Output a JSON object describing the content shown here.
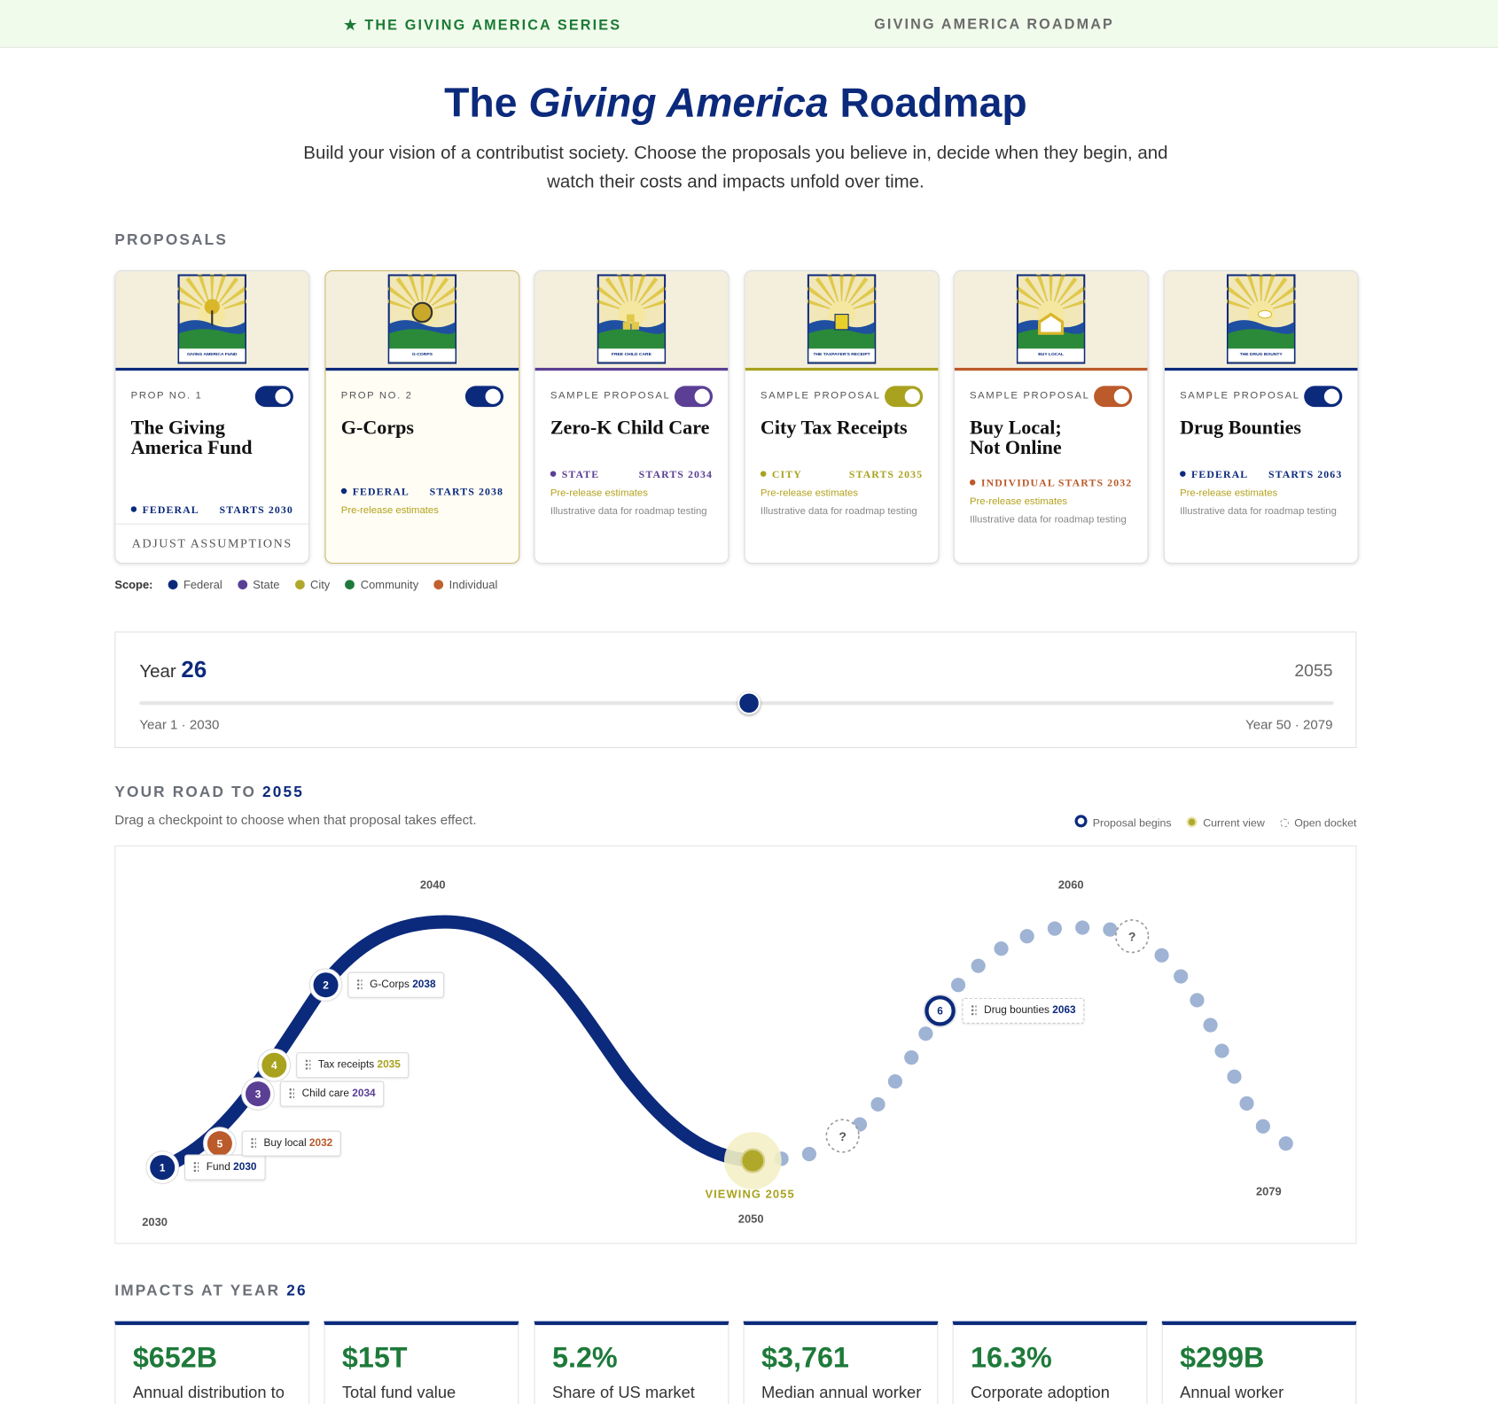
{
  "nav": {
    "series": "THE GIVING AMERICA SERIES",
    "roadmap": "GIVING AMERICA ROADMAP"
  },
  "header": {
    "title": [
      "The",
      "Giving America",
      "Roadmap"
    ],
    "subtitle": "Build your vision of a contributist society. Choose the proposals you believe in, decide when they begin, and watch their costs and impacts unfold over time."
  },
  "proposals": {
    "heading": "PROPOSALS",
    "cards": [
      {
        "poster": "GIVING AMERICA FUND",
        "label": "PROP NO. 1",
        "name": "The Giving America Fund",
        "scope": "FEDERAL",
        "starts": "STARTS 2030",
        "color": "#0c2a7c",
        "action": "ADJUST ASSUMPTIONS"
      },
      {
        "poster": "G-CORPS",
        "label": "PROP NO. 2",
        "name": "G-Corps",
        "scope": "FEDERAL",
        "starts": "STARTS 2038",
        "color": "#0c2a7c",
        "notes": [
          "Pre-release estimates"
        ]
      },
      {
        "poster": "FREE CHILD CARE",
        "label": "SAMPLE PROPOSAL",
        "name": "Zero-K Child Care",
        "scope": "STATE",
        "starts": "STARTS 2034",
        "color": "#5b3f94",
        "notes": [
          "Pre-release estimates",
          "Illustrative data for roadmap testing"
        ]
      },
      {
        "poster": "THE TAXPAYER'S RECEIPT",
        "label": "SAMPLE PROPOSAL",
        "name": "City Tax Receipts",
        "scope": "CITY",
        "starts": "STARTS 2035",
        "color": "#a9a21f",
        "notes": [
          "Pre-release estimates",
          "Illustrative data for roadmap testing"
        ]
      },
      {
        "poster": "BUY LOCAL",
        "label": "SAMPLE PROPOSAL",
        "name": "Buy Local; Not Online",
        "scope": "INDIVIDUAL",
        "starts": "STARTS 2032",
        "color": "#bb5a2b",
        "notes": [
          "Pre-release estimates",
          "Illustrative data for roadmap testing"
        ]
      },
      {
        "poster": "THE DRUG BOUNTY",
        "label": "SAMPLE PROPOSAL",
        "name": "Drug Bounties",
        "scope": "FEDERAL",
        "starts": "STARTS 2063",
        "color": "#0c2a7c",
        "notes": [
          "Pre-release estimates",
          "Illustrative data for roadmap testing"
        ]
      }
    ]
  },
  "scope_legend": {
    "label": "Scope:",
    "items": [
      {
        "name": "Federal",
        "color": "#0c2a7c"
      },
      {
        "name": "State",
        "color": "#5b3f94"
      },
      {
        "name": "City",
        "color": "#b0a82a"
      },
      {
        "name": "Community",
        "color": "#1e7a3a"
      },
      {
        "name": "Individual",
        "color": "#c0602e"
      }
    ]
  },
  "timeline": {
    "label": "Year",
    "value": 26,
    "year": "2055",
    "start": {
      "value": 1,
      "label": "Year 1 · 2030"
    },
    "end": {
      "value": 50,
      "label": "Year 50 · 2079"
    }
  },
  "road": {
    "heading": "YOUR ROAD TO",
    "year": "2055",
    "hint": "Drag a checkpoint to choose when that proposal takes effect.",
    "legend": [
      "Proposal begins",
      "Current view",
      "Open docket"
    ],
    "axis_labels": [
      "2030",
      "2040",
      "2050",
      "2060",
      "2079"
    ],
    "viewing": "VIEWING 2055",
    "checkpoints": [
      {
        "number": "1",
        "name": "Fund",
        "year": "2030",
        "color": "#0c2a7c"
      },
      {
        "number": "2",
        "name": "G-Corps",
        "year": "2038",
        "color": "#0c2a7c"
      },
      {
        "number": "3",
        "name": "Child care",
        "year": "2034",
        "color": "#5b3f94"
      },
      {
        "number": "4",
        "name": "Tax receipts",
        "year": "2035",
        "color": "#a9a21f"
      },
      {
        "number": "5",
        "name": "Buy local",
        "year": "2032",
        "color": "#bb5a2b"
      },
      {
        "number": "6",
        "name": "Drug bounties",
        "year": "2063",
        "color": "#0c2a7c"
      }
    ]
  },
  "impacts": {
    "heading": "IMPACTS AT YEAR",
    "year": "26",
    "cards": [
      {
        "value": "$652B",
        "label": "Annual distribution to"
      },
      {
        "value": "$15T",
        "label": "Total fund value"
      },
      {
        "value": "5.2%",
        "label": "Share of US market"
      },
      {
        "value": "$3,761",
        "label": "Median annual worker"
      },
      {
        "value": "16.3%",
        "label": "Corporate adoption"
      },
      {
        "value": "$299B",
        "label": "Annual worker"
      }
    ]
  }
}
